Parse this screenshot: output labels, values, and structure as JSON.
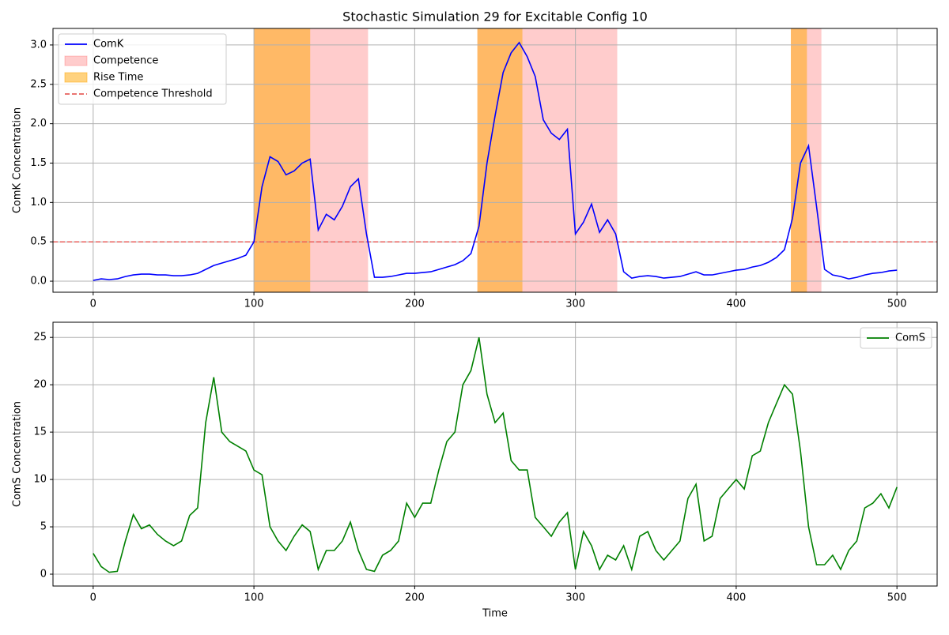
{
  "chart_data": [
    {
      "type": "line",
      "title": "Stochastic Simulation 29 for Excitable Config 10",
      "ylabel": "ComK Concentration",
      "x": [
        0,
        5,
        10,
        15,
        20,
        25,
        30,
        35,
        40,
        45,
        50,
        55,
        60,
        65,
        70,
        75,
        80,
        85,
        90,
        95,
        100,
        105,
        110,
        115,
        120,
        125,
        130,
        135,
        140,
        145,
        150,
        155,
        160,
        165,
        170,
        175,
        180,
        185,
        190,
        195,
        200,
        205,
        210,
        215,
        220,
        225,
        230,
        235,
        240,
        245,
        250,
        255,
        260,
        265,
        270,
        275,
        280,
        285,
        290,
        295,
        300,
        305,
        310,
        315,
        320,
        325,
        330,
        335,
        340,
        345,
        350,
        355,
        360,
        365,
        370,
        375,
        380,
        385,
        390,
        395,
        400,
        405,
        410,
        415,
        420,
        425,
        430,
        435,
        440,
        445,
        450,
        455,
        460,
        465,
        470,
        475,
        480,
        485,
        490,
        495,
        500
      ],
      "series": [
        {
          "name": "ComK",
          "color": "#0000ff",
          "values": [
            0.01,
            0.03,
            0.02,
            0.03,
            0.06,
            0.08,
            0.09,
            0.09,
            0.08,
            0.08,
            0.07,
            0.07,
            0.08,
            0.1,
            0.15,
            0.2,
            0.23,
            0.26,
            0.29,
            0.33,
            0.5,
            1.2,
            1.58,
            1.52,
            1.35,
            1.4,
            1.5,
            1.55,
            0.65,
            0.85,
            0.78,
            0.95,
            1.2,
            1.3,
            0.6,
            0.05,
            0.05,
            0.06,
            0.08,
            0.1,
            0.1,
            0.11,
            0.12,
            0.15,
            0.18,
            0.21,
            0.26,
            0.35,
            0.7,
            1.5,
            2.1,
            2.65,
            2.9,
            3.03,
            2.85,
            2.6,
            2.05,
            1.88,
            1.8,
            1.93,
            0.6,
            0.75,
            0.98,
            0.62,
            0.78,
            0.6,
            0.12,
            0.04,
            0.06,
            0.07,
            0.06,
            0.04,
            0.05,
            0.06,
            0.09,
            0.12,
            0.08,
            0.08,
            0.1,
            0.12,
            0.14,
            0.15,
            0.18,
            0.2,
            0.24,
            0.3,
            0.4,
            0.8,
            1.5,
            1.72,
            0.95,
            0.15,
            0.08,
            0.06,
            0.03,
            0.05,
            0.08,
            0.1,
            0.11,
            0.13,
            0.14
          ]
        }
      ],
      "shaded_regions": [
        {
          "name": "Competence",
          "color": "#ff0000",
          "spans": [
            [
              100,
              171
            ],
            [
              239,
              326
            ],
            [
              434,
              453
            ]
          ]
        },
        {
          "name": "Rise Time",
          "color": "#ffa500",
          "spans": [
            [
              100,
              135
            ],
            [
              239,
              267
            ],
            [
              434,
              444
            ]
          ]
        }
      ],
      "threshold": {
        "name": "Competence Threshold",
        "value": 0.5,
        "color": "#e8605c"
      },
      "xlim": [
        -25,
        525
      ],
      "xticks": [
        0,
        100,
        200,
        300,
        400,
        500
      ],
      "ylim": [
        -0.14,
        3.21
      ],
      "yticks": [
        {
          "value": 0,
          "label": "0.0"
        },
        0.5,
        {
          "value": 1,
          "label": "1.0"
        },
        1.5,
        {
          "value": 2,
          "label": "2.0"
        },
        2.5,
        {
          "value": 3,
          "label": "3.0"
        }
      ],
      "grid": true,
      "legend": "upper left"
    },
    {
      "type": "line",
      "xlabel": "Time",
      "ylabel": "ComS Concentration",
      "x": [
        0,
        5,
        10,
        15,
        20,
        25,
        30,
        35,
        40,
        45,
        50,
        55,
        60,
        65,
        70,
        75,
        80,
        85,
        90,
        95,
        100,
        105,
        110,
        115,
        120,
        125,
        130,
        135,
        140,
        145,
        150,
        155,
        160,
        165,
        170,
        175,
        180,
        185,
        190,
        195,
        200,
        205,
        210,
        215,
        220,
        225,
        230,
        235,
        240,
        245,
        250,
        255,
        260,
        265,
        270,
        275,
        280,
        285,
        290,
        295,
        300,
        305,
        310,
        315,
        320,
        325,
        330,
        335,
        340,
        345,
        350,
        355,
        360,
        365,
        370,
        375,
        380,
        385,
        390,
        395,
        400,
        405,
        410,
        415,
        420,
        425,
        430,
        435,
        440,
        445,
        450,
        455,
        460,
        465,
        470,
        475,
        480,
        485,
        490,
        495,
        500
      ],
      "series": [
        {
          "name": "ComS",
          "color": "#008000",
          "values": [
            2.2,
            0.8,
            0.2,
            0.3,
            3.5,
            6.3,
            4.8,
            5.2,
            4.2,
            3.5,
            3,
            3.5,
            6.2,
            7,
            16,
            20.8,
            15,
            14,
            13.5,
            13,
            11,
            10.5,
            5,
            3.5,
            2.5,
            4,
            5.2,
            4.5,
            0.5,
            2.5,
            2.5,
            3.5,
            5.5,
            2.5,
            0.5,
            0.3,
            2,
            2.5,
            3.5,
            7.5,
            6,
            7.5,
            7.5,
            11,
            14,
            15,
            20,
            21.5,
            25,
            19,
            16,
            17,
            12,
            11,
            11,
            6,
            5,
            4,
            5.5,
            6.5,
            0.5,
            4.5,
            3,
            0.5,
            2,
            1.5,
            3,
            0.5,
            4,
            4.5,
            2.5,
            1.5,
            2.5,
            3.5,
            8,
            9.5,
            3.5,
            4,
            8,
            9,
            10,
            9,
            12.5,
            13,
            16,
            18,
            20,
            19,
            13,
            5,
            1,
            1,
            2,
            0.5,
            2.5,
            3.5,
            7,
            7.5,
            8.5,
            7,
            9.2
          ]
        }
      ],
      "xlim": [
        -25,
        525
      ],
      "xticks": [
        0,
        100,
        200,
        300,
        400,
        500
      ],
      "ylim": [
        -1.25,
        26.6
      ],
      "yticks": [
        0,
        5,
        10,
        15,
        20,
        25
      ],
      "grid": true,
      "legend": "upper right"
    }
  ]
}
